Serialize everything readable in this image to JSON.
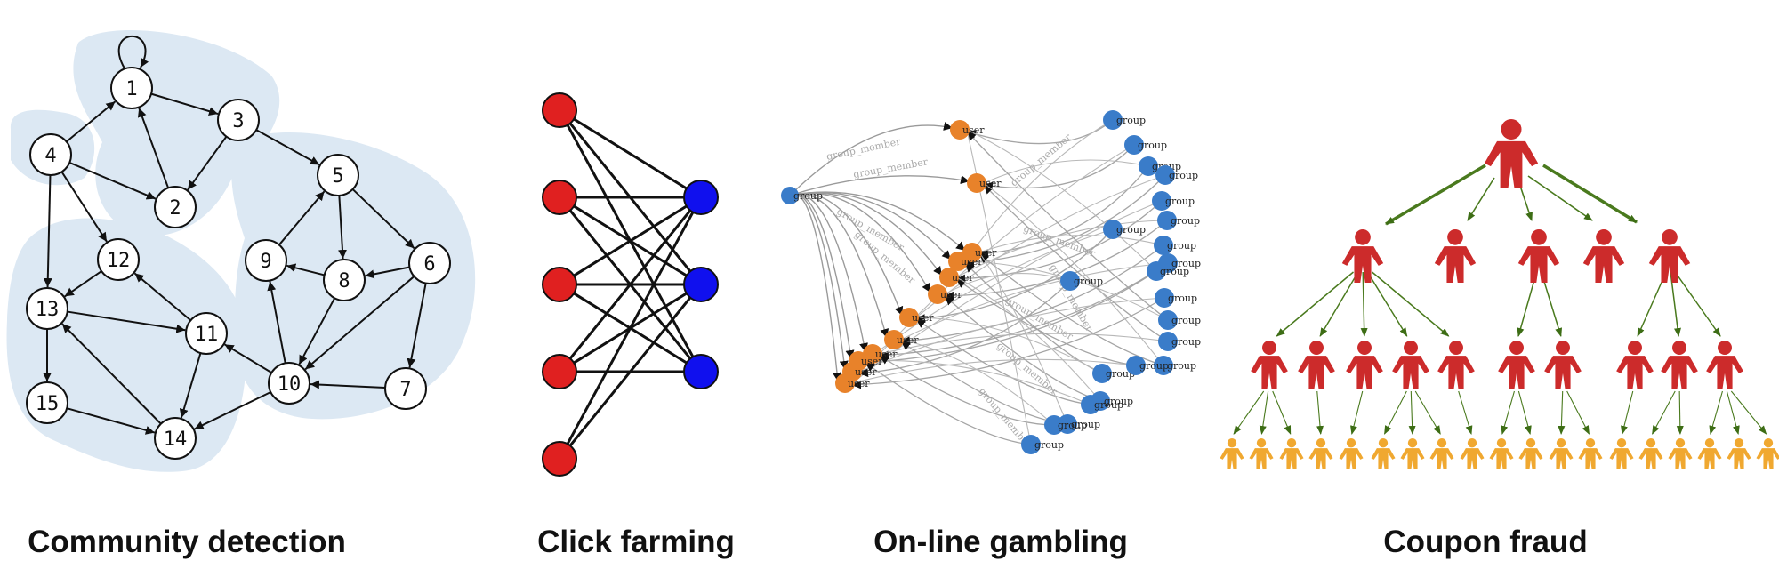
{
  "captions": {
    "community": "Community detection",
    "click": "Click farming",
    "gambling": "On-line gambling",
    "coupon": "Coupon fraud"
  },
  "community": {
    "nodes": [
      "1",
      "2",
      "3",
      "4",
      "5",
      "6",
      "7",
      "8",
      "9",
      "10",
      "11",
      "12",
      "13",
      "14",
      "15"
    ],
    "edges": [
      [
        "1",
        "1"
      ],
      [
        "4",
        "1"
      ],
      [
        "1",
        "3"
      ],
      [
        "3",
        "2"
      ],
      [
        "2",
        "1"
      ],
      [
        "4",
        "2"
      ],
      [
        "4",
        "12"
      ],
      [
        "4",
        "13"
      ],
      [
        "3",
        "5"
      ],
      [
        "5",
        "6"
      ],
      [
        "5",
        "8"
      ],
      [
        "9",
        "5"
      ],
      [
        "6",
        "8"
      ],
      [
        "6",
        "7"
      ],
      [
        "6",
        "10"
      ],
      [
        "8",
        "9"
      ],
      [
        "8",
        "10"
      ],
      [
        "10",
        "9"
      ],
      [
        "10",
        "11"
      ],
      [
        "7",
        "10"
      ],
      [
        "11",
        "12"
      ],
      [
        "12",
        "13"
      ],
      [
        "13",
        "11"
      ],
      [
        "13",
        "15"
      ],
      [
        "11",
        "14"
      ],
      [
        "10",
        "14"
      ],
      [
        "14",
        "13"
      ],
      [
        "15",
        "14"
      ]
    ]
  },
  "click_farming": {
    "left_color": "#e02020",
    "right_color": "#1010ee"
  },
  "gambling": {
    "group_label": "group",
    "user_label": "user",
    "edge_label": "group_member",
    "group_color": "#3a7cc9",
    "user_color": "#e8822a"
  },
  "coupon": {
    "top_color": "#cc2b2b",
    "leaf_color": "#f0a830",
    "arrow_color": "#4a7a1e"
  }
}
